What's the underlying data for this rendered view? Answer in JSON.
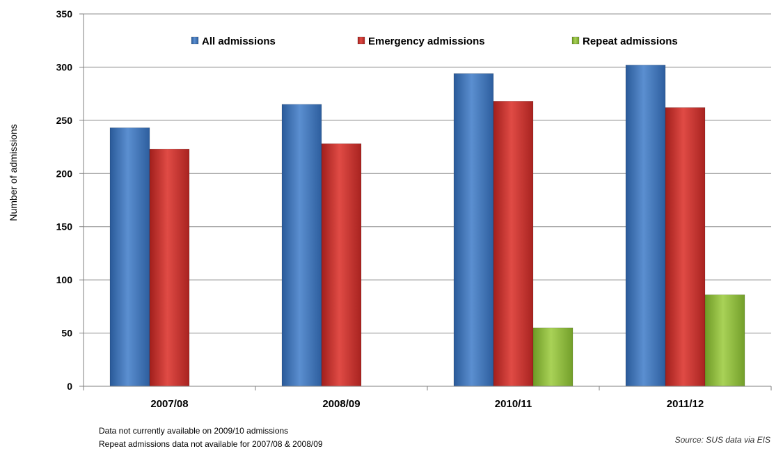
{
  "chart_data": {
    "type": "bar",
    "title": "",
    "xlabel": "",
    "ylabel": "Number of admissions",
    "ylim": [
      0,
      350
    ],
    "yticks": [
      0,
      50,
      100,
      150,
      200,
      250,
      300,
      350
    ],
    "grid": true,
    "legend_position": "top",
    "categories": [
      "2007/08",
      "2008/09",
      "2010/11",
      "2011/12"
    ],
    "series": [
      {
        "name": "All admissions",
        "color": "#3F74B9",
        "values": [
          243,
          265,
          294,
          302
        ]
      },
      {
        "name": "Emergency admissions",
        "color": "#C8302C",
        "values": [
          223,
          228,
          268,
          262
        ]
      },
      {
        "name": "Repeat admissions",
        "color": "#8DBB3C",
        "values": [
          null,
          null,
          55,
          86
        ]
      }
    ]
  },
  "notes": [
    "Data not currently available on 2009/10 admissions",
    "Repeat admissions data not available for 2007/08 & 2008/09"
  ],
  "source": "Source: SUS data via EIS"
}
